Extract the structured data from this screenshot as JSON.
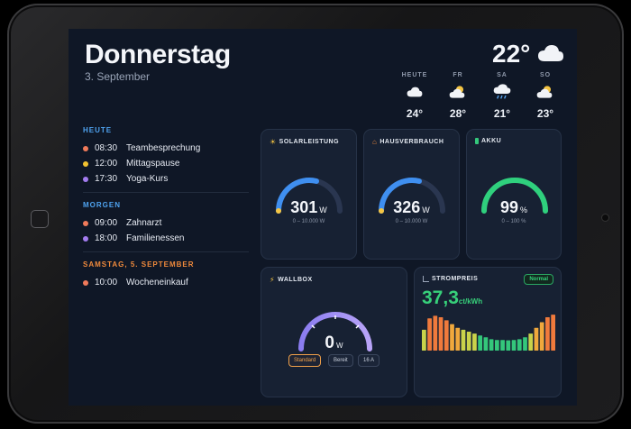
{
  "header": {
    "day": "Donnerstag",
    "date": "3. September",
    "current_temp": "22°",
    "current_icon": "cloud-icon"
  },
  "forecast": [
    {
      "day": "HEUTE",
      "icon": "cloud-icon",
      "temp": "24°"
    },
    {
      "day": "FR",
      "icon": "sun-cloud-icon",
      "temp": "28°"
    },
    {
      "day": "SA",
      "icon": "rain-cloud-icon",
      "temp": "21°"
    },
    {
      "day": "SO",
      "icon": "sun-cloud-icon",
      "temp": "23°"
    }
  ],
  "agenda": {
    "sections": [
      {
        "heading": "HEUTE",
        "heading_color": "#4fa3f0",
        "events": [
          {
            "time": "08:30",
            "title": "Teambesprechung",
            "color": "#f07a5a"
          },
          {
            "time": "12:00",
            "title": "Mittagspause",
            "color": "#f2c230"
          },
          {
            "time": "17:30",
            "title": "Yoga-Kurs",
            "color": "#a37cf0"
          }
        ]
      },
      {
        "heading": "MORGEN",
        "heading_color": "#4fa3f0",
        "events": [
          {
            "time": "09:00",
            "title": "Zahnarzt",
            "color": "#f07a5a"
          },
          {
            "time": "18:00",
            "title": "Familienessen",
            "color": "#a37cf0"
          }
        ]
      },
      {
        "heading": "SAMSTAG, 5. SEPTEMBER",
        "heading_color": "#f08a3c",
        "events": [
          {
            "time": "10:00",
            "title": "Wocheneinkauf",
            "color": "#f07a5a"
          }
        ]
      }
    ]
  },
  "solar": {
    "title": "SOLARLEISTUNG",
    "icon": "sun-icon",
    "value": "301",
    "unit": "W",
    "range": "0 – 10.000 W",
    "level": 0.45
  },
  "house": {
    "title": "HAUSVERBRAUCH",
    "icon": "house-icon",
    "value": "326",
    "unit": "W",
    "range": "0 – 10.000 W",
    "level": 0.45
  },
  "battery": {
    "title": "AKKU",
    "icon": "battery-icon",
    "value": "99",
    "unit": "%",
    "range": "0 – 100 %",
    "level": 0.99
  },
  "wallbox": {
    "title": "WALLBOX",
    "icon": "lightning-icon",
    "value": "0",
    "unit": "W",
    "mode": "Standard",
    "status": "Bereit",
    "current": "16 A",
    "level": 1.0
  },
  "price": {
    "title": "STROMPREIS",
    "icon": "chart-icon",
    "value": "37,3",
    "unit": "ct/kWh",
    "badge": "Normal",
    "bars": [
      0.55,
      0.85,
      0.92,
      0.88,
      0.8,
      0.7,
      0.6,
      0.55,
      0.5,
      0.45,
      0.4,
      0.35,
      0.3,
      0.28,
      0.28,
      0.27,
      0.28,
      0.3,
      0.35,
      0.45,
      0.6,
      0.75,
      0.88,
      0.95
    ]
  }
}
